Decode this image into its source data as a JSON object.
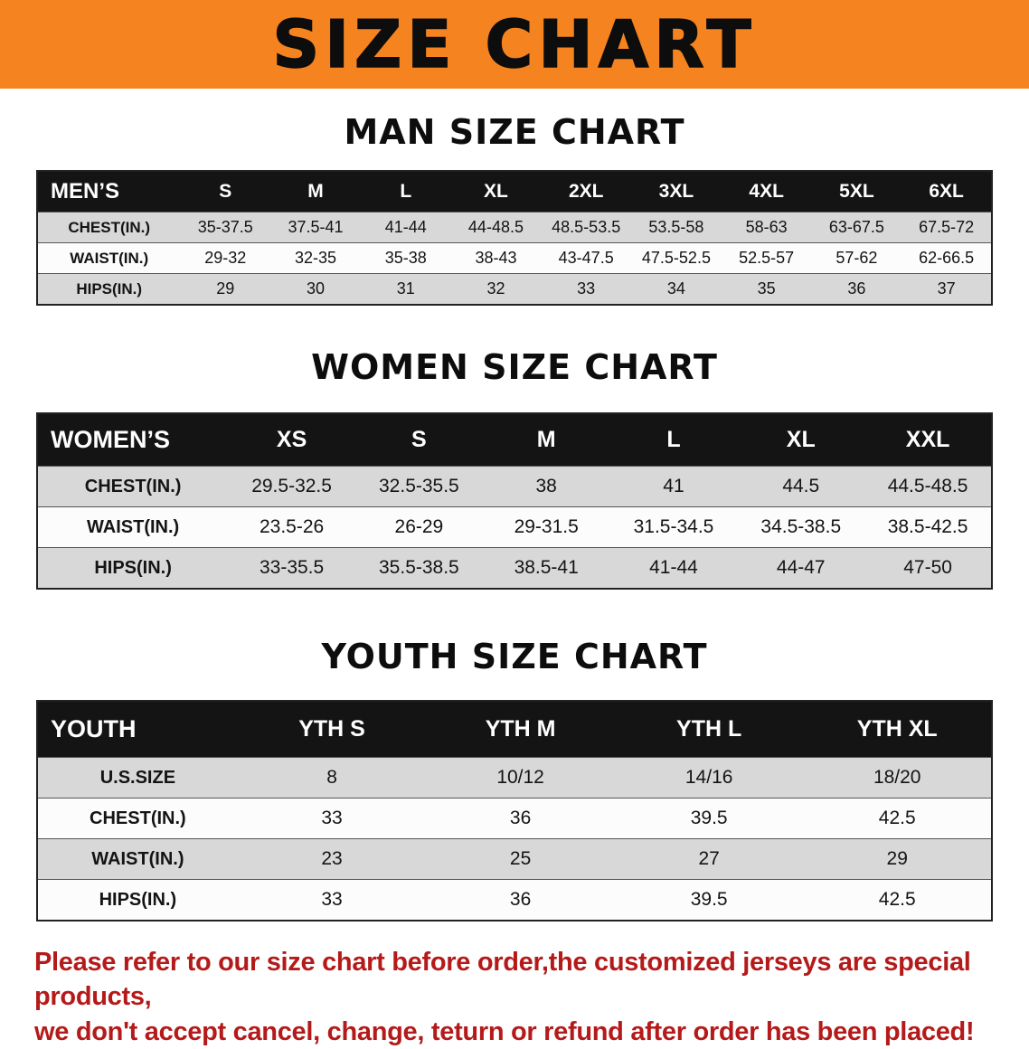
{
  "banner": {
    "title": "SIZE CHART"
  },
  "colors": {
    "banner_bg": "#f5831f",
    "table_header_bg": "#141414",
    "row_shade": "#d8d8d8",
    "note_red": "#b51a1a"
  },
  "sections": [
    {
      "heading": "MAN SIZE CHART",
      "table": {
        "columns": [
          "MEN’S",
          "S",
          "M",
          "L",
          "XL",
          "2XL",
          "3XL",
          "4XL",
          "5XL",
          "6XL"
        ],
        "rows": [
          [
            "CHEST(IN.)",
            "35-37.5",
            "37.5-41",
            "41-44",
            "44-48.5",
            "48.5-53.5",
            "53.5-58",
            "58-63",
            "63-67.5",
            "67.5-72"
          ],
          [
            "WAIST(IN.)",
            "29-32",
            "32-35",
            "35-38",
            "38-43",
            "43-47.5",
            "47.5-52.5",
            "52.5-57",
            "57-62",
            "62-66.5"
          ],
          [
            "HIPS(IN.)",
            "29",
            "30",
            "31",
            "32",
            "33",
            "34",
            "35",
            "36",
            "37"
          ]
        ]
      }
    },
    {
      "heading": "WOMEN SIZE CHART",
      "table": {
        "columns": [
          "WOMEN’S",
          "XS",
          "S",
          "M",
          "L",
          "XL",
          "XXL"
        ],
        "rows": [
          [
            "CHEST(IN.)",
            "29.5-32.5",
            "32.5-35.5",
            "38",
            "41",
            "44.5",
            "44.5-48.5"
          ],
          [
            "WAIST(IN.)",
            "23.5-26",
            "26-29",
            "29-31.5",
            "31.5-34.5",
            "34.5-38.5",
            "38.5-42.5"
          ],
          [
            "HIPS(IN.)",
            "33-35.5",
            "35.5-38.5",
            "38.5-41",
            "41-44",
            "44-47",
            "47-50"
          ]
        ]
      }
    },
    {
      "heading": "YOUTH SIZE CHART",
      "table": {
        "columns": [
          "YOUTH",
          "YTH S",
          "YTH M",
          "YTH L",
          "YTH XL"
        ],
        "rows": [
          [
            "U.S.SIZE",
            "8",
            "10/12",
            "14/16",
            "18/20"
          ],
          [
            "CHEST(IN.)",
            "33",
            "36",
            "39.5",
            "42.5"
          ],
          [
            "WAIST(IN.)",
            "23",
            "25",
            "27",
            "29"
          ],
          [
            "HIPS(IN.)",
            "33",
            "36",
            "39.5",
            "42.5"
          ]
        ]
      }
    }
  ],
  "footnote": {
    "line1": "Please refer to our size chart before order,the customized jerseys are special products,",
    "line2": "we don't accept cancel, change, teturn or refund after order has been placed!"
  }
}
